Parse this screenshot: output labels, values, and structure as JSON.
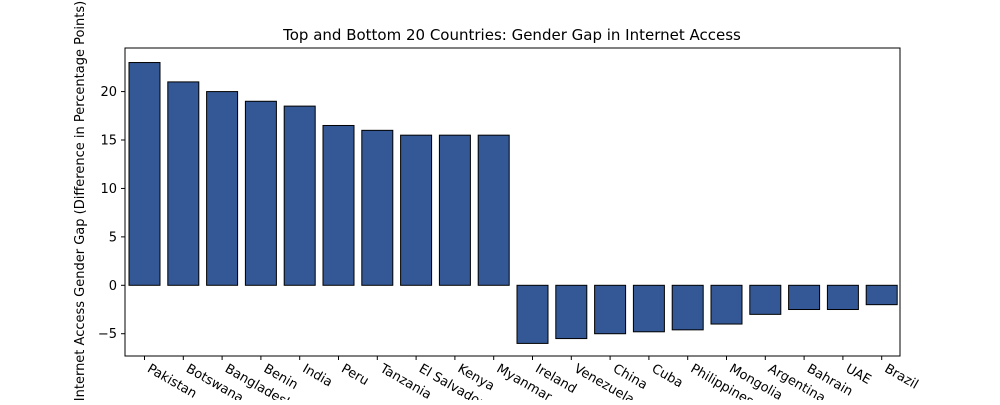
{
  "chart_data": {
    "type": "bar",
    "title": "Top and Bottom 20 Countries: Gender Gap in Internet Access",
    "xlabel": "",
    "ylabel": "Internet Access Gender Gap (Difference in Percentage Points)",
    "categories": [
      "Pakistan",
      "Botswana",
      "Bangladesh",
      "Benin",
      "India",
      "Peru",
      "Tanzania",
      "El Salvador",
      "Kenya",
      "Myanmar",
      "Ireland",
      "Venezuela",
      "China",
      "Cuba",
      "Philippines",
      "Mongolia",
      "Argentina",
      "Bahrain",
      "UAE",
      "Brazil"
    ],
    "values": [
      23,
      21,
      20,
      19,
      18.5,
      16.5,
      16,
      15.5,
      15.5,
      15.5,
      -6,
      -5.5,
      -5,
      -4.8,
      -4.6,
      -4,
      -3,
      -2.5,
      -2.5,
      -2
    ],
    "ylim": [
      -7.3,
      24.5
    ],
    "yticks": [
      -5,
      0,
      5,
      10,
      15,
      20
    ],
    "grid": false,
    "bar_color": "#335895",
    "edge_color": "#000000"
  }
}
